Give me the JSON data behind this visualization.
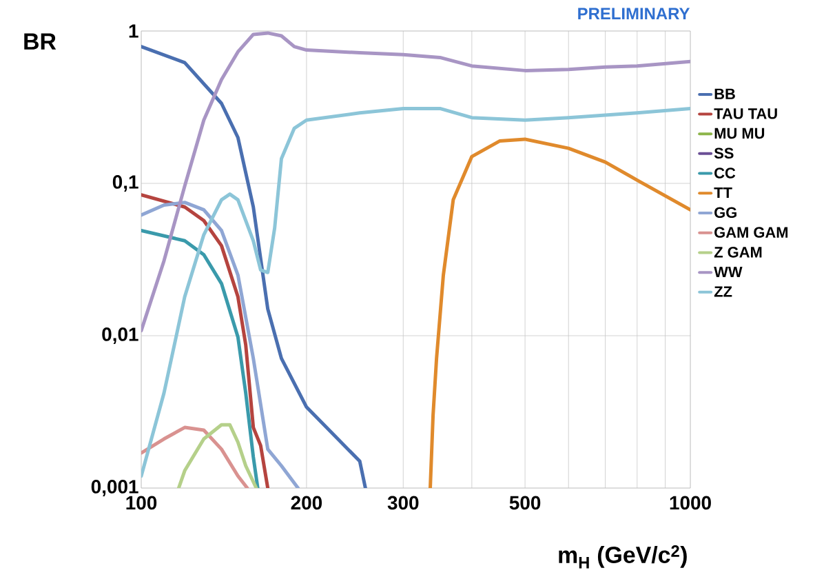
{
  "chart_data": {
    "type": "line",
    "ylabel": "BR",
    "xlabel": "m$_{H}$ (GeV/c$^{2}$)",
    "annotations": [
      "PRELIMINARY"
    ],
    "log": "xy",
    "xlim": [
      100,
      1000
    ],
    "ylim": [
      0.001,
      1
    ],
    "xticks": [
      100,
      200,
      300,
      {
        "value": 400,
        "label": null
      },
      500,
      {
        "value": 600,
        "label": null
      },
      {
        "value": 700,
        "label": null
      },
      {
        "value": 800,
        "label": null
      },
      {
        "value": 900,
        "label": null
      },
      1000
    ],
    "yticks": [
      {
        "value": 0.001,
        "label": "0,001"
      },
      {
        "value": 0.01,
        "label": "0,01"
      },
      {
        "value": 0.1,
        "label": "0,1"
      },
      {
        "value": 1,
        "label": "1"
      }
    ],
    "grid": true,
    "legend": "right",
    "marker": "none",
    "line_style": "solid",
    "series": [
      {
        "name": "BB",
        "color": "#4a6fb0",
        "x": [
          100,
          120,
          140,
          150,
          160,
          170,
          180,
          200,
          250,
          256
        ],
        "values": [
          0.79,
          0.62,
          0.335,
          0.2,
          0.07,
          0.015,
          0.0071,
          0.0034,
          0.0015,
          0.001
        ]
      },
      {
        "name": "TAU TAU",
        "color": "#b5443f",
        "x": [
          100,
          120,
          130,
          140,
          150,
          155,
          160,
          165,
          170
        ],
        "values": [
          0.084,
          0.07,
          0.057,
          0.039,
          0.018,
          0.0087,
          0.0025,
          0.0019,
          0.001
        ]
      },
      {
        "name": "MU MU",
        "color": "#8db54a"
      },
      {
        "name": "SS",
        "color": "#6b4f96"
      },
      {
        "name": "CC",
        "color": "#3a9aab",
        "x": [
          100,
          120,
          130,
          140,
          150,
          155,
          160,
          163
        ],
        "values": [
          0.049,
          0.042,
          0.034,
          0.022,
          0.0098,
          0.0042,
          0.0016,
          0.001
        ]
      },
      {
        "name": "TT",
        "color": "#e08a2c",
        "x": [
          336,
          340,
          345,
          355,
          370,
          400,
          450,
          500,
          600,
          700,
          800,
          1000
        ],
        "values": [
          0.001,
          0.003,
          0.0071,
          0.025,
          0.078,
          0.15,
          0.19,
          0.195,
          0.17,
          0.138,
          0.105,
          0.067
        ]
      },
      {
        "name": "GG",
        "color": "#8fa6d4",
        "x": [
          100,
          110,
          120,
          130,
          140,
          150,
          160,
          170,
          180,
          193
        ],
        "values": [
          0.062,
          0.072,
          0.075,
          0.067,
          0.049,
          0.025,
          0.0071,
          0.0018,
          0.0014,
          0.001
        ]
      },
      {
        "name": "GAM GAM",
        "color": "#d99290",
        "x": [
          100,
          110,
          120,
          130,
          140,
          150,
          156
        ],
        "values": [
          0.0017,
          0.0021,
          0.0025,
          0.0024,
          0.0018,
          0.0012,
          0.001
        ]
      },
      {
        "name": "Z GAM",
        "color": "#b5d08a",
        "x": [
          117,
          120,
          130,
          140,
          145,
          150,
          155,
          162
        ],
        "values": [
          0.001,
          0.0013,
          0.0021,
          0.0026,
          0.0026,
          0.002,
          0.0014,
          0.001
        ]
      },
      {
        "name": "WW",
        "color": "#a895c4",
        "x": [
          100,
          110,
          120,
          130,
          140,
          150,
          160,
          170,
          180,
          190,
          200,
          250,
          300,
          350,
          400,
          500,
          600,
          700,
          800,
          1000
        ],
        "values": [
          0.0108,
          0.031,
          0.096,
          0.26,
          0.48,
          0.73,
          0.95,
          0.97,
          0.93,
          0.79,
          0.75,
          0.72,
          0.7,
          0.67,
          0.59,
          0.55,
          0.56,
          0.58,
          0.59,
          0.63
        ]
      },
      {
        "name": "ZZ",
        "color": "#8cc5d8",
        "x": [
          100,
          110,
          120,
          130,
          140,
          145,
          150,
          160,
          165,
          170,
          175,
          180,
          190,
          200,
          250,
          300,
          350,
          400,
          500,
          600,
          800,
          1000
        ],
        "values": [
          0.0012,
          0.0042,
          0.018,
          0.046,
          0.078,
          0.085,
          0.078,
          0.042,
          0.027,
          0.026,
          0.051,
          0.145,
          0.23,
          0.26,
          0.29,
          0.31,
          0.31,
          0.27,
          0.26,
          0.27,
          0.29,
          0.31
        ]
      }
    ]
  }
}
